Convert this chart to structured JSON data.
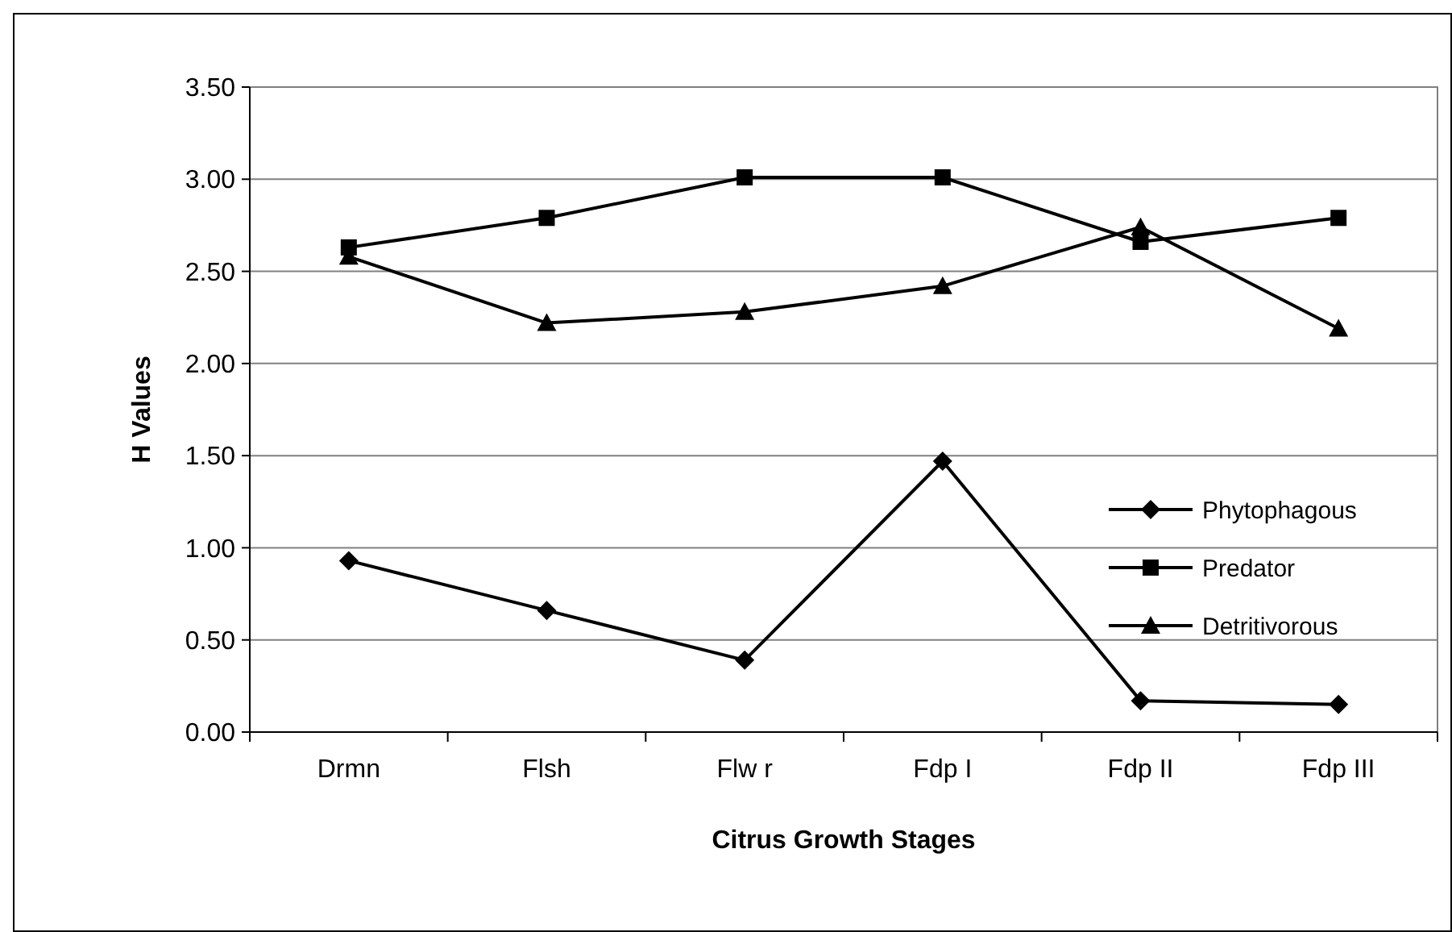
{
  "chart_data": {
    "type": "line",
    "xlabel": "Citrus Growth Stages",
    "ylabel": "H Values",
    "categories": [
      "Drmn",
      "Flsh",
      "Flw r",
      "Fdp I",
      "Fdp II",
      "Fdp III"
    ],
    "series": [
      {
        "name": "Phytophagous",
        "color": "#000000",
        "marker": "diamond",
        "values": [
          0.93,
          0.66,
          0.39,
          1.47,
          0.17,
          0.15
        ]
      },
      {
        "name": "Predator",
        "color": "#000000",
        "marker": "square",
        "values": [
          2.63,
          2.79,
          3.01,
          3.01,
          2.66,
          2.79
        ]
      },
      {
        "name": "Detritivorous",
        "color": "#000000",
        "marker": "triangle",
        "values": [
          2.58,
          2.22,
          2.28,
          2.42,
          2.74,
          2.19
        ]
      }
    ],
    "ylim": [
      0,
      3.5
    ],
    "yticks": [
      {
        "value": 0,
        "label": "0.00"
      },
      {
        "value": 0.5,
        "label": "0.50"
      },
      {
        "value": 1,
        "label": "1.00"
      },
      {
        "value": 1.5,
        "label": "1.50"
      },
      {
        "value": 2,
        "label": "2.00"
      },
      {
        "value": 2.5,
        "label": "2.50"
      },
      {
        "value": 3,
        "label": "3.00"
      },
      {
        "value": 3.5,
        "label": "3.50"
      }
    ],
    "grid": "y",
    "legend": "right",
    "line_style": "solid"
  }
}
